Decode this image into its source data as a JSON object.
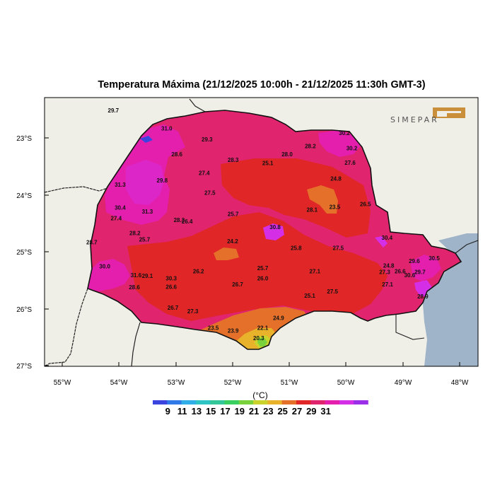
{
  "title": "Temperatura Máxima (21/12/2025 10:00h - 21/12/2025 11:30h GMT-3)",
  "logo": {
    "text": "SIMEPAR",
    "color": "#c98f3a"
  },
  "map": {
    "lat_labels": [
      "23°S",
      "24°S",
      "25°S",
      "26°S",
      "27°S"
    ],
    "lon_labels": [
      "55°W",
      "54°W",
      "53°W",
      "52°W",
      "51°W",
      "50°W",
      "49°W",
      "48°W"
    ],
    "land_color": "#efeee7",
    "ocean_color": "#9fb4c8"
  },
  "colorbar": {
    "unit": "(°C)",
    "labels": [
      "9",
      "11",
      "13",
      "15",
      "17",
      "19",
      "21",
      "23",
      "25",
      "27",
      "29",
      "31"
    ],
    "colors": [
      "#3c44e0",
      "#2f79e8",
      "#31aee8",
      "#2fc4c4",
      "#33c79a",
      "#3ad060",
      "#79d23c",
      "#c9d32c",
      "#e8b22a",
      "#e5702a",
      "#e02626",
      "#e0246e",
      "#e41fae",
      "#d42ee6",
      "#9b2fe8"
    ]
  },
  "stations": [
    {
      "v": "29.7",
      "lon": -54.1,
      "lat": -22.55
    },
    {
      "v": "31.0",
      "lon": -53.16,
      "lat": -22.87
    },
    {
      "v": "29.3",
      "lon": -52.45,
      "lat": -23.06
    },
    {
      "v": "30.2",
      "lon": -50.03,
      "lat": -22.95
    },
    {
      "v": "28.2",
      "lon": -50.63,
      "lat": -23.18
    },
    {
      "v": "30.2",
      "lon": -49.9,
      "lat": -23.22
    },
    {
      "v": "28.6",
      "lon": -52.98,
      "lat": -23.32
    },
    {
      "v": "28.3",
      "lon": -51.99,
      "lat": -23.42
    },
    {
      "v": "28.0",
      "lon": -51.04,
      "lat": -23.32
    },
    {
      "v": "25.1",
      "lon": -51.38,
      "lat": -23.48
    },
    {
      "v": "27.6",
      "lon": -49.93,
      "lat": -23.47
    },
    {
      "v": "27.4",
      "lon": -52.5,
      "lat": -23.65
    },
    {
      "v": "29.8",
      "lon": -53.24,
      "lat": -23.78
    },
    {
      "v": "31.3",
      "lon": -53.98,
      "lat": -23.86
    },
    {
      "v": "24.8",
      "lon": -50.18,
      "lat": -23.75
    },
    {
      "v": "27.5",
      "lon": -52.4,
      "lat": -24.0
    },
    {
      "v": "26.5",
      "lon": -49.66,
      "lat": -24.2
    },
    {
      "v": "23.5",
      "lon": -50.2,
      "lat": -24.25
    },
    {
      "v": "30.4",
      "lon": -53.98,
      "lat": -24.26
    },
    {
      "v": "31.3",
      "lon": -53.5,
      "lat": -24.33
    },
    {
      "v": "28.1",
      "lon": -50.6,
      "lat": -24.3
    },
    {
      "v": "25.7",
      "lon": -51.99,
      "lat": -24.37
    },
    {
      "v": "27.4",
      "lon": -54.05,
      "lat": -24.45
    },
    {
      "v": "28.3",
      "lon": -52.94,
      "lat": -24.48
    },
    {
      "v": "26.4",
      "lon": -52.8,
      "lat": -24.5
    },
    {
      "v": "30.8",
      "lon": -51.25,
      "lat": -24.6
    },
    {
      "v": "28.2",
      "lon": -53.72,
      "lat": -24.71
    },
    {
      "v": "30.4",
      "lon": -49.28,
      "lat": -24.79
    },
    {
      "v": "28.7",
      "lon": -54.48,
      "lat": -24.87
    },
    {
      "v": "25.7",
      "lon": -53.55,
      "lat": -24.82
    },
    {
      "v": "24.2",
      "lon": -52.0,
      "lat": -24.85
    },
    {
      "v": "25.8",
      "lon": -50.88,
      "lat": -24.97
    },
    {
      "v": "27.5",
      "lon": -50.14,
      "lat": -24.97
    },
    {
      "v": "30.5",
      "lon": -48.45,
      "lat": -25.15
    },
    {
      "v": "29.6",
      "lon": -48.8,
      "lat": -25.2
    },
    {
      "v": "30.0",
      "lon": -54.25,
      "lat": -25.29
    },
    {
      "v": "24.8",
      "lon": -49.25,
      "lat": -25.28
    },
    {
      "v": "25.7",
      "lon": -51.47,
      "lat": -25.32
    },
    {
      "v": "26.2",
      "lon": -52.6,
      "lat": -25.38
    },
    {
      "v": "27.1",
      "lon": -50.55,
      "lat": -25.38
    },
    {
      "v": "27.3",
      "lon": -49.32,
      "lat": -25.39
    },
    {
      "v": "26.6",
      "lon": -49.05,
      "lat": -25.38
    },
    {
      "v": "29.7",
      "lon": -48.7,
      "lat": -25.39
    },
    {
      "v": "31.6",
      "lon": -53.7,
      "lat": -25.45
    },
    {
      "v": "29.1",
      "lon": -53.5,
      "lat": -25.46
    },
    {
      "v": "30.3",
      "lon": -53.08,
      "lat": -25.5
    },
    {
      "v": "26.0",
      "lon": -51.47,
      "lat": -25.5
    },
    {
      "v": "30.6",
      "lon": -48.88,
      "lat": -25.45
    },
    {
      "v": "26.7",
      "lon": -51.91,
      "lat": -25.61
    },
    {
      "v": "28.6",
      "lon": -53.73,
      "lat": -25.66
    },
    {
      "v": "26.6",
      "lon": -53.08,
      "lat": -25.65
    },
    {
      "v": "27.1",
      "lon": -49.27,
      "lat": -25.61
    },
    {
      "v": "27.5",
      "lon": -50.24,
      "lat": -25.73
    },
    {
      "v": "25.1",
      "lon": -50.64,
      "lat": -25.81
    },
    {
      "v": "28.9",
      "lon": -48.65,
      "lat": -25.82
    },
    {
      "v": "26.7",
      "lon": -53.05,
      "lat": -26.02
    },
    {
      "v": "27.3",
      "lon": -52.7,
      "lat": -26.08
    },
    {
      "v": "24.9",
      "lon": -51.19,
      "lat": -26.2
    },
    {
      "v": "23.5",
      "lon": -52.34,
      "lat": -26.37
    },
    {
      "v": "22.1",
      "lon": -51.47,
      "lat": -26.37
    },
    {
      "v": "23.9",
      "lon": -51.99,
      "lat": -26.42
    },
    {
      "v": "20.3",
      "lon": -51.54,
      "lat": -26.55
    }
  ]
}
